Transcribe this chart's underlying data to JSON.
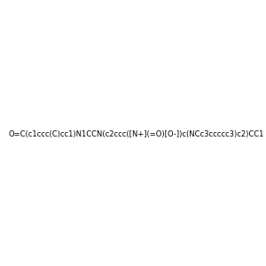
{
  "smiles": "O=C(c1ccc(C)cc1)N1CCN(c2ccc([N+](=O)[O-])c(NCc3ccccc3)c2)CC1",
  "image_size": 300,
  "background_color": "#e8e8e8",
  "title": ""
}
